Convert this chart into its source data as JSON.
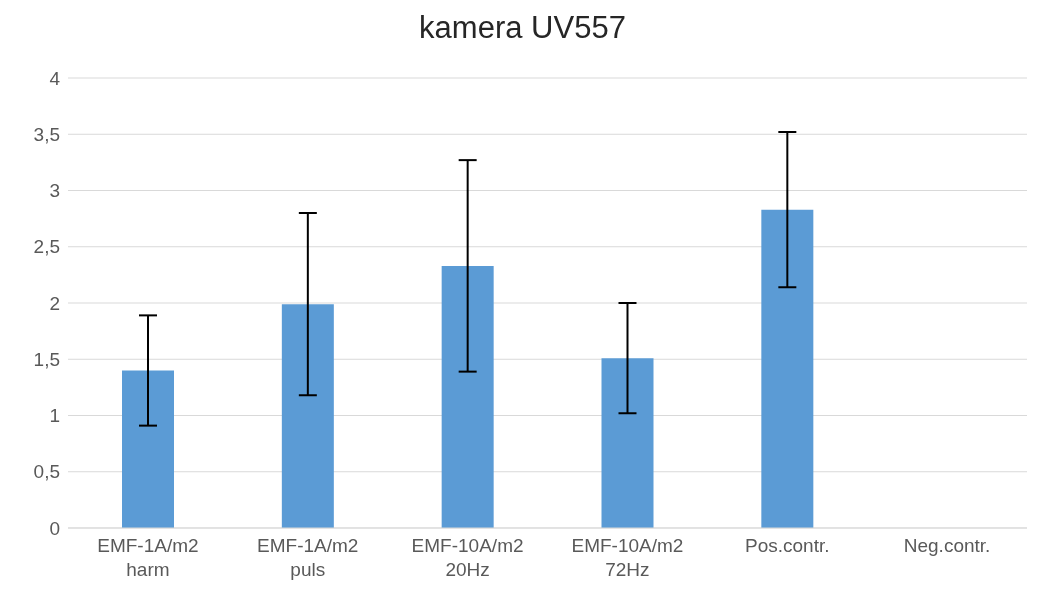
{
  "chart_data": {
    "type": "bar",
    "title": "kamera UV557",
    "categories": [
      "EMF-1A/m2 harm",
      "EMF-1A/m2 puls",
      "EMF-10A/m2 20Hz",
      "EMF-10A/m2 72Hz",
      "Pos.contr.",
      "Neg.contr."
    ],
    "values": [
      1.4,
      1.99,
      2.33,
      1.51,
      2.83,
      0
    ],
    "errors": [
      0.49,
      0.81,
      0.94,
      0.49,
      0.69,
      0
    ],
    "color": "#5b9bd5",
    "ylim": [
      0,
      4
    ],
    "yticks": [
      0,
      {
        "value": 0.5,
        "label": "0,5"
      },
      1,
      {
        "value": 1.5,
        "label": "1,5"
      },
      2,
      {
        "value": 2.5,
        "label": "2,5"
      },
      3,
      {
        "value": 3.5,
        "label": "3,5"
      },
      4
    ],
    "grid": "y",
    "legend": false
  }
}
